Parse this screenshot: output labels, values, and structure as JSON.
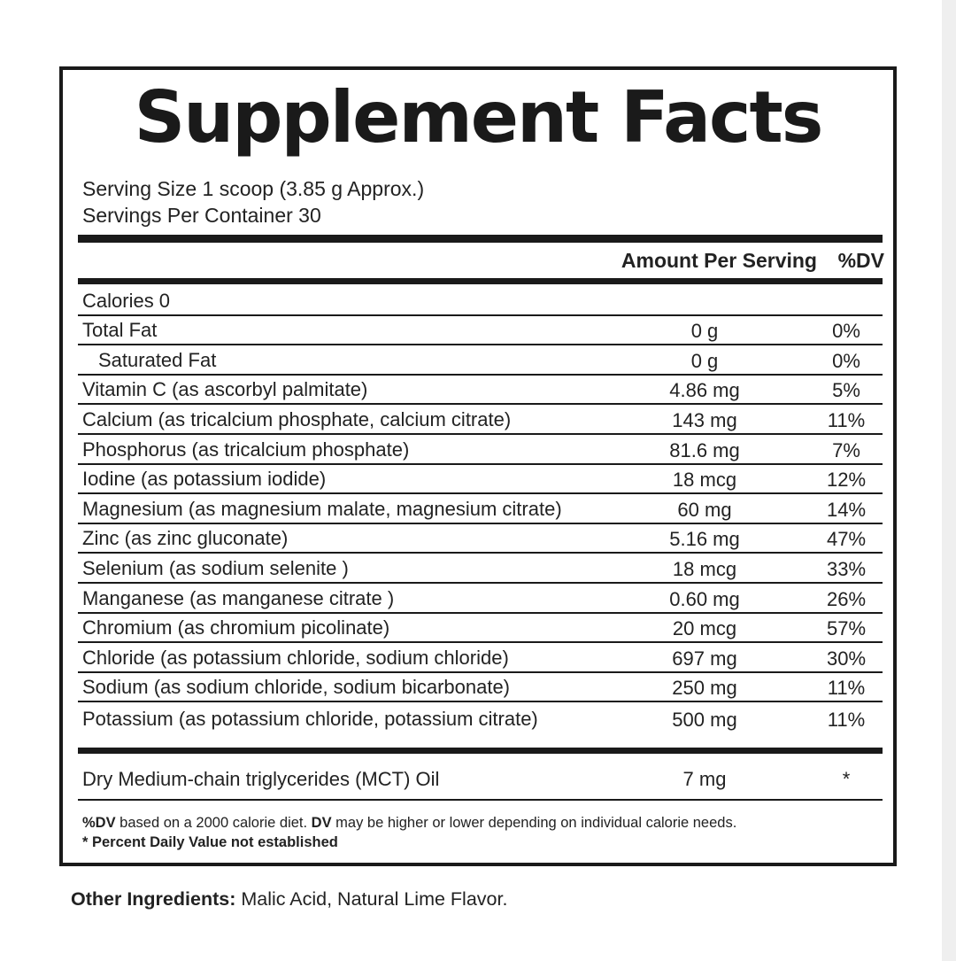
{
  "label": {
    "title": "Supplement Facts",
    "serving_size": "Serving Size 1 scoop (3.85 g Approx.)",
    "servings_per_container": "Servings Per Container 30",
    "header_amount": "Amount Per Serving",
    "header_dv": "%DV"
  },
  "nutrients": [
    {
      "name": "Calories 0",
      "amount": "",
      "dv": "",
      "indent": false
    },
    {
      "name": "Total Fat",
      "amount": "0 g",
      "dv": "0%",
      "indent": false
    },
    {
      "name": "Saturated Fat",
      "amount": "0 g",
      "dv": "0%",
      "indent": true
    },
    {
      "name": "Vitamin C (as ascorbyl palmitate)",
      "amount": "4.86 mg",
      "dv": "5%",
      "indent": false
    },
    {
      "name": "Calcium (as tricalcium phosphate, calcium citrate)",
      "amount": "143 mg",
      "dv": "11%",
      "indent": false
    },
    {
      "name": "Phosphorus (as tricalcium phosphate)",
      "amount": "81.6 mg",
      "dv": "7%",
      "indent": false
    },
    {
      "name": "Iodine (as potassium iodide)",
      "amount": "18 mcg",
      "dv": "12%",
      "indent": false
    },
    {
      "name": "Magnesium (as magnesium malate, magnesium citrate)",
      "amount": "60 mg",
      "dv": "14%",
      "indent": false
    },
    {
      "name": "Zinc (as zinc gluconate)",
      "amount": "5.16 mg",
      "dv": "47%",
      "indent": false
    },
    {
      "name": "Selenium (as sodium selenite )",
      "amount": "18 mcg",
      "dv": "33%",
      "indent": false
    },
    {
      "name": "Manganese (as manganese citrate )",
      "amount": "0.60 mg",
      "dv": "26%",
      "indent": false
    },
    {
      "name": "Chromium (as chromium picolinate)",
      "amount": "20 mcg",
      "dv": "57%",
      "indent": false
    },
    {
      "name": "Chloride (as potassium chloride, sodium chloride)",
      "amount": "697 mg",
      "dv": "30%",
      "indent": false
    },
    {
      "name": "Sodium (as sodium chloride, sodium bicarbonate)",
      "amount": "250 mg",
      "dv": "11%",
      "indent": false
    },
    {
      "name": "Potassium (as potassium chloride, potassium citrate)",
      "amount": "500 mg",
      "dv": "11%",
      "indent": false
    }
  ],
  "other_nutrient": {
    "name": "Dry Medium-chain triglycerides (MCT) Oil",
    "amount": "7 mg",
    "dv": "*"
  },
  "footnotes": {
    "dv_bold_1": "%DV",
    "dv_text_1": " based on a 2000 calorie diet. ",
    "dv_bold_2": "DV",
    "dv_text_2": " may be higher or lower depending on individual calorie needs.",
    "not_established": "* Percent Daily Value not established"
  },
  "other_ingredients": {
    "label": "Other Ingredients:",
    "text": " Malic Acid, Natural Lime Flavor."
  }
}
